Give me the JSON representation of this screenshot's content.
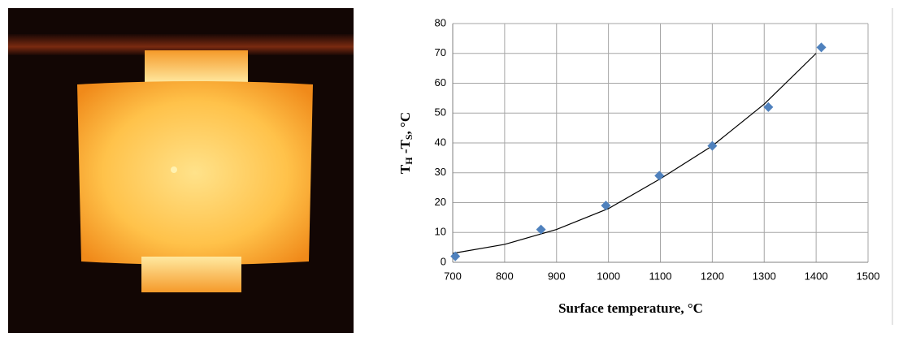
{
  "chart_data": {
    "type": "scatter",
    "xlabel": "Surface temperature, °C",
    "ylabel": {
      "t1": "T",
      "s1": "H",
      "t2": " -T",
      "s2": "S",
      "unit": ", °C"
    },
    "x": [
      705,
      870,
      995,
      1098,
      1200,
      1308,
      1410
    ],
    "values": [
      2,
      11,
      19,
      29,
      39,
      52,
      72
    ],
    "color": "#4f81bd",
    "trendline": {
      "x": [
        700,
        800,
        900,
        1000,
        1100,
        1200,
        1300,
        1400
      ],
      "y": [
        3,
        6,
        11,
        18,
        28,
        39,
        53,
        70
      ],
      "color": "#000000"
    },
    "xlim": [
      700,
      1500
    ],
    "xticks": [
      700,
      800,
      900,
      1000,
      1100,
      1200,
      1300,
      1400,
      1500
    ],
    "ylim": [
      0,
      80
    ],
    "yticks": [
      0,
      10,
      20,
      30,
      40,
      50,
      60,
      70,
      80
    ],
    "grid": true
  }
}
